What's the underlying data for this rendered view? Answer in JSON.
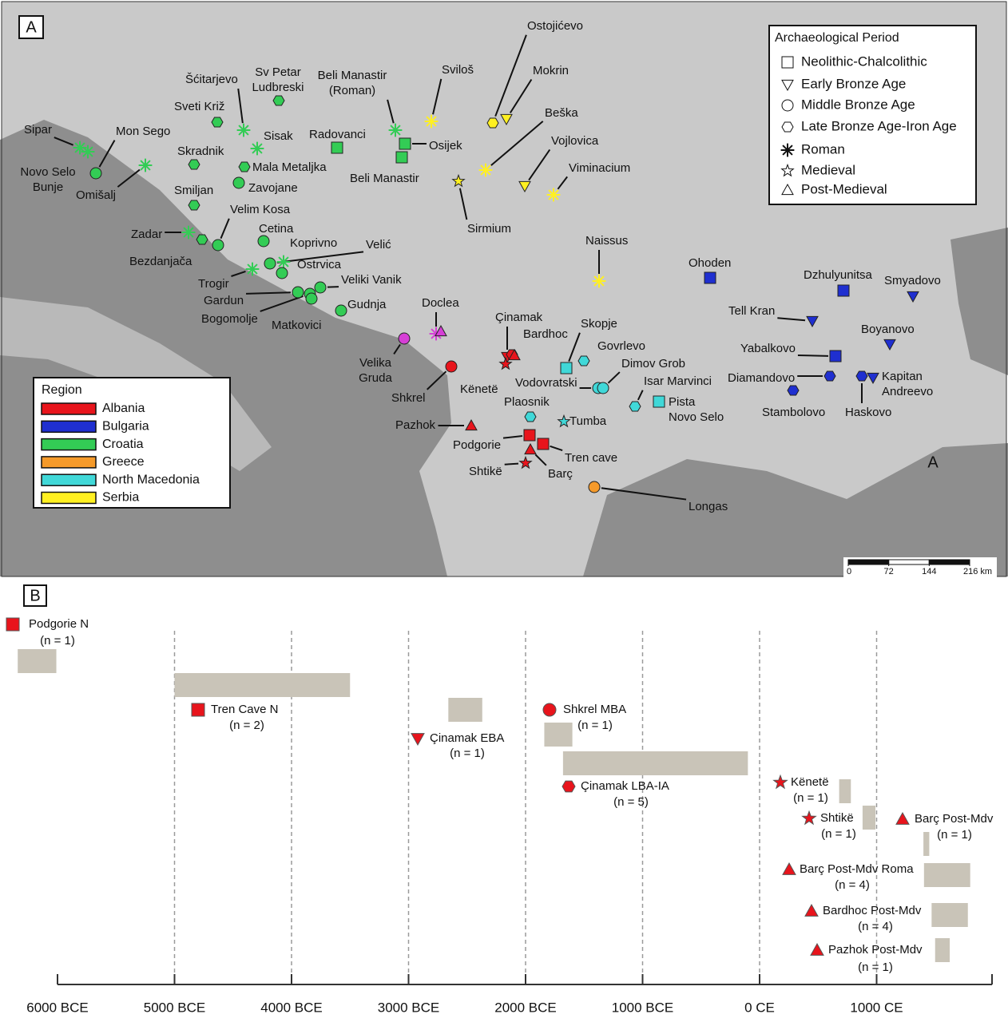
{
  "map": {
    "panel_label": "A",
    "section_label": "A",
    "region_legend": {
      "title": "Region",
      "items": [
        {
          "name": "Albania",
          "color": "#e8141c"
        },
        {
          "name": "Bulgaria",
          "color": "#1f2fd0"
        },
        {
          "name": "Croatia",
          "color": "#33cc55"
        },
        {
          "name": "Greece",
          "color": "#f59a2a"
        },
        {
          "name": "North Macedonia",
          "color": "#40d8d8"
        },
        {
          "name": "Serbia",
          "color": "#fff021"
        }
      ]
    },
    "period_legend": {
      "title": "Archaeological Period",
      "items": [
        "Neolithic-Chalcolithic",
        "Early Bronze Age",
        "Middle Bronze Age",
        "Late Bronze Age-Iron Age",
        "Roman",
        "Medieval",
        "Post-Medieval"
      ]
    },
    "scale_bar": {
      "ticks": [
        0,
        72,
        144,
        {
          "value": 216,
          "label": "216 km"
        }
      ]
    },
    "sites": [
      {
        "label": [
          "Sipar"
        ],
        "region": "Croatia",
        "period": [
          "Roman"
        ]
      },
      {
        "label": [
          "Mon Sego"
        ],
        "region": "Croatia",
        "period": [
          "Middle Bronze Age"
        ]
      },
      {
        "label": [
          "Novo Selo",
          "Bunje"
        ],
        "region": "Croatia",
        "period": [
          "Roman"
        ]
      },
      {
        "label": [
          "Omišalj"
        ],
        "region": "Croatia",
        "period": [
          "Roman"
        ]
      },
      {
        "label": [
          "Šćitarjevo"
        ],
        "region": "Croatia",
        "period": [
          "Roman"
        ]
      },
      {
        "label": [
          "Sv Petar",
          "Ludbreski"
        ],
        "region": "Croatia",
        "period": [
          "Late Bronze Age-Iron Age"
        ]
      },
      {
        "label": [
          "Sveti Križ"
        ],
        "region": "Croatia",
        "period": [
          "Late Bronze Age-Iron Age"
        ]
      },
      {
        "label": [
          "Sisak"
        ],
        "region": "Croatia",
        "period": [
          "Roman"
        ]
      },
      {
        "label": [
          "Skradnik"
        ],
        "region": "Croatia",
        "period": [
          "Late Bronze Age-Iron Age"
        ]
      },
      {
        "label": [
          "Mala Metaljka"
        ],
        "region": "Croatia",
        "period": [
          "Late Bronze Age-Iron Age"
        ]
      },
      {
        "label": [
          "Zavojane"
        ],
        "region": "Croatia",
        "period": [
          "Middle Bronze Age"
        ]
      },
      {
        "label": [
          "Smiljan"
        ],
        "region": "Croatia",
        "period": [
          "Late Bronze Age-Iron Age"
        ]
      },
      {
        "label": [
          "Velim Kosa"
        ],
        "region": "Croatia",
        "period": [
          "Middle Bronze Age"
        ]
      },
      {
        "label": [
          "Zadar"
        ],
        "region": "Croatia",
        "period": [
          "Roman"
        ]
      },
      {
        "label": [
          "Bezdanjača"
        ],
        "region": "Croatia",
        "period": [
          "Late Bronze Age-Iron Age"
        ]
      },
      {
        "label": [
          "Cetina"
        ],
        "region": "Croatia",
        "period": [
          "Middle Bronze Age"
        ]
      },
      {
        "label": [
          "Koprivno"
        ],
        "region": "Croatia",
        "period": [
          "Roman"
        ]
      },
      {
        "label": [
          "Velić"
        ],
        "region": "Croatia",
        "period": [
          "Middle Bronze Age"
        ]
      },
      {
        "label": [
          "Trogir"
        ],
        "region": "Croatia",
        "period": [
          "Roman"
        ]
      },
      {
        "label": [
          "Ostrvica"
        ],
        "region": "Croatia",
        "period": [
          "Middle Bronze Age"
        ]
      },
      {
        "label": [
          "Gardun"
        ],
        "region": "Croatia",
        "period": [
          "Middle Bronze Age"
        ]
      },
      {
        "label": [
          "Veliki Vanik"
        ],
        "region": "Croatia",
        "period": [
          "Middle Bronze Age"
        ]
      },
      {
        "label": [
          "Bogomolje"
        ],
        "region": "Croatia",
        "period": [
          "Middle Bronze Age"
        ]
      },
      {
        "label": [
          "Matkovici"
        ],
        "region": "Croatia",
        "period": [
          "Middle Bronze Age"
        ]
      },
      {
        "label": [
          "Gudnja"
        ],
        "region": "Croatia",
        "period": [
          "Middle Bronze Age"
        ]
      },
      {
        "label": [
          "Beli Manastir",
          "(Roman)"
        ],
        "region": "Croatia",
        "period": [
          "Roman"
        ]
      },
      {
        "label": [
          "Osijek"
        ],
        "region": "Croatia",
        "period": [
          "Neolithic-Chalcolithic"
        ]
      },
      {
        "label": [
          "Radovanci"
        ],
        "region": "Croatia",
        "period": [
          "Neolithic-Chalcolithic"
        ]
      },
      {
        "label": [
          "Beli Manastir"
        ],
        "region": "Croatia",
        "period": [
          "Neolithic-Chalcolithic"
        ]
      },
      {
        "label": [
          "Sviloš"
        ],
        "region": "Serbia",
        "period": [
          "Roman"
        ]
      },
      {
        "label": [
          "Ostojićevo"
        ],
        "region": "Serbia",
        "period": [
          "Late Bronze Age-Iron Age"
        ]
      },
      {
        "label": [
          "Mokrin"
        ],
        "region": "Serbia",
        "period": [
          "Early Bronze Age"
        ]
      },
      {
        "label": [
          "Beška"
        ],
        "region": "Serbia",
        "period": [
          "Roman"
        ]
      },
      {
        "label": [
          "Vojlovica"
        ],
        "region": "Serbia",
        "period": [
          "Early Bronze Age"
        ]
      },
      {
        "label": [
          "Viminacium"
        ],
        "region": "Serbia",
        "period": [
          "Roman"
        ]
      },
      {
        "label": [
          "Sirmium"
        ],
        "region": "Serbia",
        "period": [
          "Medieval"
        ]
      },
      {
        "label": [
          "Naissus"
        ],
        "region": "Serbia",
        "period": [
          "Roman"
        ]
      },
      {
        "label": [
          "Doclea"
        ],
        "region": null,
        "color": "#d63fd6",
        "period": [
          "Roman",
          "Post-Medieval"
        ]
      },
      {
        "label": [
          "Velika",
          "Gruda"
        ],
        "region": null,
        "color": "#d63fd6",
        "period": [
          "Middle Bronze Age"
        ]
      },
      {
        "label": [
          "Shkrel"
        ],
        "region": "Albania",
        "period": [
          "Middle Bronze Age"
        ]
      },
      {
        "label": [
          "Çinamak"
        ],
        "region": "Albania",
        "period": [
          "Early Bronze Age",
          "Late Bronze Age-Iron Age"
        ]
      },
      {
        "label": [
          "Bardhoc"
        ],
        "region": "Albania",
        "period": [
          "Post-Medieval"
        ]
      },
      {
        "label": [
          "Kënetë"
        ],
        "region": "Albania",
        "period": [
          "Medieval"
        ]
      },
      {
        "label": [
          "Pazhok"
        ],
        "region": "Albania",
        "period": [
          "Post-Medieval"
        ]
      },
      {
        "label": [
          "Podgorie"
        ],
        "region": "Albania",
        "period": [
          "Neolithic-Chalcolithic"
        ]
      },
      {
        "label": [
          "Tren cave"
        ],
        "region": "Albania",
        "period": [
          "Neolithic-Chalcolithic"
        ]
      },
      {
        "label": [
          "Barç"
        ],
        "region": "Albania",
        "period": [
          "Post-Medieval"
        ]
      },
      {
        "label": [
          "Shtikë"
        ],
        "region": "Albania",
        "period": [
          "Medieval"
        ]
      },
      {
        "label": [
          "Longas"
        ],
        "region": "Greece",
        "period": [
          "Middle Bronze Age"
        ]
      },
      {
        "label": [
          "Skopje"
        ],
        "region": "North Macedonia",
        "period": [
          "Neolithic-Chalcolithic"
        ]
      },
      {
        "label": [
          "Govrlevo"
        ],
        "region": "North Macedonia",
        "period": [
          "Late Bronze Age-Iron Age"
        ]
      },
      {
        "label": [
          "Vodovratski"
        ],
        "region": "North Macedonia",
        "period": [
          "Middle Bronze Age"
        ]
      },
      {
        "label": [
          "Dimov Grob"
        ],
        "region": "North Macedonia",
        "period": [
          "Middle Bronze Age"
        ]
      },
      {
        "label": [
          "Isar Marvinci"
        ],
        "region": "North Macedonia",
        "period": [
          "Late Bronze Age-Iron Age"
        ]
      },
      {
        "label": [
          "Pista",
          "Novo Selo"
        ],
        "region": "North Macedonia",
        "period": [
          "Neolithic-Chalcolithic"
        ]
      },
      {
        "label": [
          "Plaosnik"
        ],
        "region": "North Macedonia",
        "period": [
          "Late Bronze Age-Iron Age"
        ]
      },
      {
        "label": [
          "Tumba"
        ],
        "region": "North Macedonia",
        "period": [
          "Medieval"
        ]
      },
      {
        "label": [
          "Ohoden"
        ],
        "region": "Bulgaria",
        "period": [
          "Neolithic-Chalcolithic"
        ]
      },
      {
        "label": [
          "Dzhulyunitsa"
        ],
        "region": "Bulgaria",
        "period": [
          "Neolithic-Chalcolithic"
        ]
      },
      {
        "label": [
          "Smyadovo"
        ],
        "region": "Bulgaria",
        "period": [
          "Early Bronze Age"
        ]
      },
      {
        "label": [
          "Tell Kran"
        ],
        "region": "Bulgaria",
        "period": [
          "Early Bronze Age"
        ]
      },
      {
        "label": [
          "Boyanovo"
        ],
        "region": "Bulgaria",
        "period": [
          "Early Bronze Age"
        ]
      },
      {
        "label": [
          "Yabalkovo"
        ],
        "region": "Bulgaria",
        "period": [
          "Neolithic-Chalcolithic"
        ]
      },
      {
        "label": [
          "Diamandovo"
        ],
        "region": "Bulgaria",
        "period": [
          "Late Bronze Age-Iron Age"
        ]
      },
      {
        "label": [
          "Stambolovo"
        ],
        "region": "Bulgaria",
        "period": [
          "Late Bronze Age-Iron Age"
        ]
      },
      {
        "label": [
          "Kapitan",
          "Andreevo"
        ],
        "region": "Bulgaria",
        "period": [
          "Early Bronze Age"
        ]
      },
      {
        "label": [
          "Haskovo"
        ],
        "region": "Bulgaria",
        "period": [
          "Late Bronze Age-Iron Age"
        ]
      }
    ]
  },
  "chart_data": {
    "type": "range",
    "panel_label": "B",
    "color": "#e8141c",
    "bar_color": "#c9c4b8",
    "categories": [
      "Podgorie N",
      "Tren Cave N",
      "Çinamak EBA",
      "Shkrel MBA",
      "Çinamak LBA-IA",
      "Kënetë",
      "Shtikë",
      "Barç Post-Mdv",
      "Barç Post-Mdv Roma",
      "Bardhoc Post-Mdv",
      "Pazhok Post-Mdv"
    ],
    "sample_counts": [
      "(n = 1)",
      "(n = 2)",
      "(n = 1)",
      "(n = 1)",
      "(n = 5)",
      "(n = 1)",
      "(n = 1)",
      "(n = 1)",
      "(n = 4)",
      "(n = 4)",
      "(n = 1)"
    ],
    "marker_periods": [
      "Neolithic-Chalcolithic",
      "Neolithic-Chalcolithic",
      "Early Bronze Age",
      "Middle Bronze Age",
      "Late Bronze Age-Iron Age",
      "Medieval",
      "Medieval",
      "Post-Medieval",
      "Post-Medieval",
      "Post-Medieval",
      "Post-Medieval"
    ],
    "values": [
      [
        -6340,
        -6010
      ],
      [
        -5000,
        -3500
      ],
      [
        -2660,
        -2370
      ],
      [
        -1840,
        -1600
      ],
      [
        -1680,
        -100
      ],
      [
        680,
        780
      ],
      [
        880,
        990
      ],
      [
        1400,
        1450
      ],
      [
        1405,
        1800
      ],
      [
        1470,
        1780
      ],
      [
        1500,
        1625
      ]
    ],
    "xlim": [
      -6000,
      2000
    ],
    "xticks": [
      {
        "value": -6000,
        "label": "6000 BCE"
      },
      {
        "value": -5000,
        "label": "5000 BCE"
      },
      {
        "value": -4000,
        "label": "4000 BCE"
      },
      {
        "value": -3000,
        "label": "3000 BCE"
      },
      {
        "value": -2000,
        "label": "2000 BCE"
      },
      {
        "value": -1000,
        "label": "1000 BCE"
      },
      {
        "value": 0,
        "label": "0 CE"
      },
      {
        "value": 1000,
        "label": "1000 CE"
      }
    ],
    "grid": true
  }
}
